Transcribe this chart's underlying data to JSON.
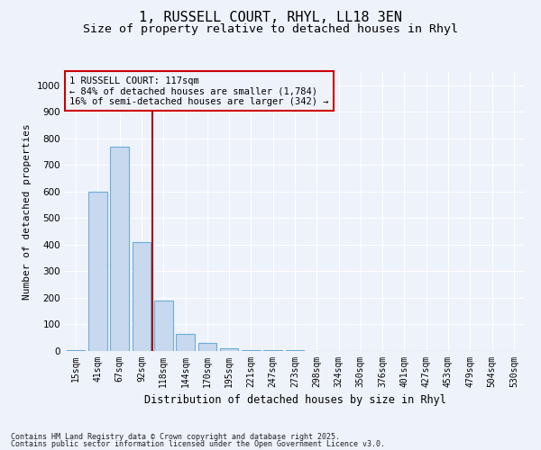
{
  "title1": "1, RUSSELL COURT, RHYL, LL18 3EN",
  "title2": "Size of property relative to detached houses in Rhyl",
  "xlabel": "Distribution of detached houses by size in Rhyl",
  "ylabel": "Number of detached properties",
  "categories": [
    "15sqm",
    "41sqm",
    "67sqm",
    "92sqm",
    "118sqm",
    "144sqm",
    "170sqm",
    "195sqm",
    "221sqm",
    "247sqm",
    "273sqm",
    "298sqm",
    "324sqm",
    "350sqm",
    "376sqm",
    "401sqm",
    "427sqm",
    "453sqm",
    "479sqm",
    "504sqm",
    "530sqm"
  ],
  "values": [
    5,
    600,
    770,
    410,
    190,
    65,
    30,
    10,
    5,
    5,
    2,
    1,
    1,
    0,
    0,
    0,
    0,
    0,
    0,
    0,
    0
  ],
  "bar_color": "#c8d9ef",
  "bar_edge_color": "#6baed6",
  "bg_color": "#eef2fb",
  "grid_color": "#ffffff",
  "annotation_text": "1 RUSSELL COURT: 117sqm\n← 84% of detached houses are smaller (1,784)\n16% of semi-detached houses are larger (342) →",
  "vline_color": "#aa0000",
  "annotation_box_color": "#cc0000",
  "ylim": [
    0,
    1050
  ],
  "yticks": [
    0,
    100,
    200,
    300,
    400,
    500,
    600,
    700,
    800,
    900,
    1000
  ],
  "footnote1": "Contains HM Land Registry data © Crown copyright and database right 2025.",
  "footnote2": "Contains public sector information licensed under the Open Government Licence v3.0.",
  "title_fontsize": 11,
  "subtitle_fontsize": 9.5,
  "tick_fontsize": 7,
  "ylabel_fontsize": 8,
  "xlabel_fontsize": 8.5,
  "annot_fontsize": 7.5,
  "footnote_fontsize": 6
}
